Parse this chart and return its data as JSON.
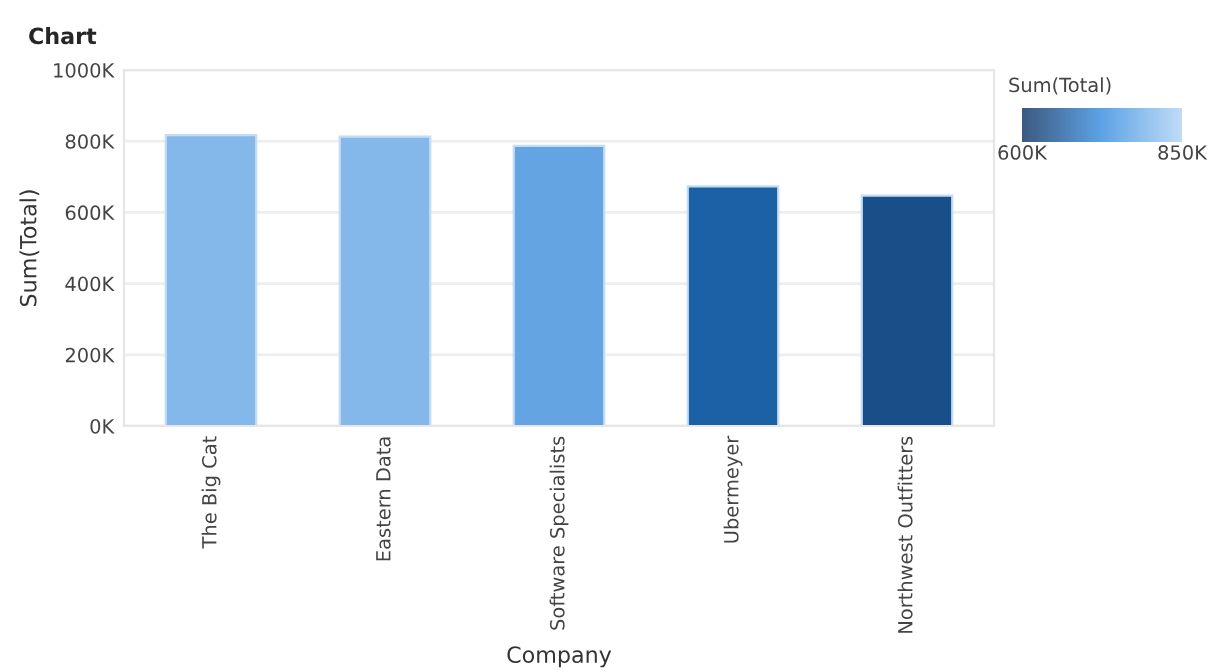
{
  "chart_data": {
    "type": "bar",
    "title": "Chart",
    "xlabel": "Company",
    "ylabel": "Sum(Total)",
    "clabel": "Sum(Total)",
    "categories": [
      "The Big Cat",
      "Eastern Data",
      "Software Specialists",
      "Ubermeyer",
      "Northwest Outfitters"
    ],
    "values": [
      817000,
      813000,
      787000,
      673000,
      647000
    ],
    "colors": [
      "#85b8ea",
      "#85b8ea",
      "#64a4e3",
      "#1c60a6",
      "#184f88"
    ],
    "ylim": [
      0,
      1000000
    ],
    "yticks": [
      {
        "value": 0,
        "label": "0K"
      },
      {
        "value": 200000,
        "label": "200K"
      },
      {
        "value": 400000,
        "label": "400K"
      },
      {
        "value": 600000,
        "label": "600K"
      },
      {
        "value": 800000,
        "label": "800K"
      },
      {
        "value": 1000000,
        "label": "1000K"
      }
    ],
    "clim": [
      600000,
      850000
    ],
    "cticks": [
      {
        "value": 600000,
        "label": "600K"
      },
      {
        "value": 850000,
        "label": "850K"
      }
    ],
    "grid": "y"
  }
}
